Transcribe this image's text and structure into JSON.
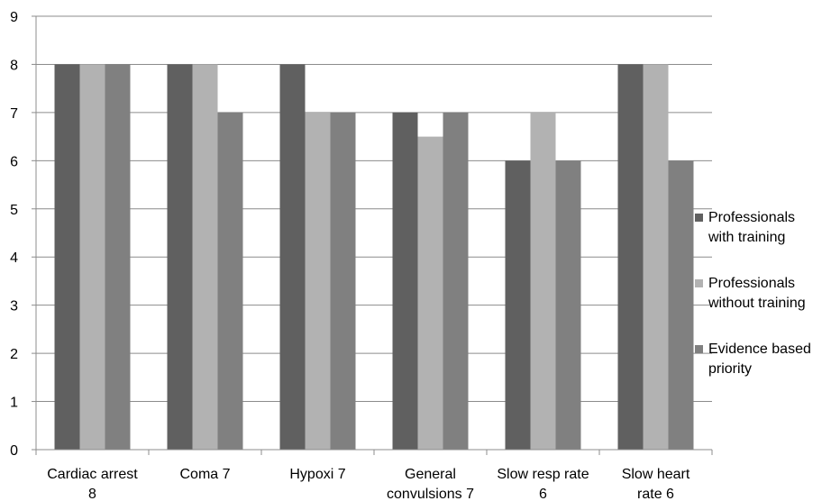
{
  "chart_data": {
    "type": "bar",
    "categories": [
      [
        "Cardiac arrest",
        "8"
      ],
      [
        "Coma 7"
      ],
      [
        "Hypoxi 7"
      ],
      [
        "General",
        "convulsions 7"
      ],
      [
        "Slow resp rate",
        "6"
      ],
      [
        "Slow heart",
        "rate 6"
      ]
    ],
    "series": [
      {
        "name": [
          "Professionals",
          "with training"
        ],
        "color": "#606060",
        "values": [
          8,
          8,
          8,
          7,
          6,
          8
        ]
      },
      {
        "name": [
          "Professionals",
          "without training"
        ],
        "color": "#b2b2b2",
        "values": [
          8,
          8,
          7,
          6.5,
          7,
          8
        ]
      },
      {
        "name": [
          "Evidence based",
          "priority"
        ],
        "color": "#808080",
        "values": [
          8,
          7,
          7,
          7,
          6,
          6
        ]
      }
    ],
    "title": "",
    "xlabel": "",
    "ylabel": "",
    "ylim": [
      0,
      9
    ],
    "yticks": [
      "0",
      "1",
      "2",
      "3",
      "4",
      "5",
      "6",
      "7",
      "8",
      "9"
    ],
    "grid": true,
    "legend_position": "right"
  }
}
